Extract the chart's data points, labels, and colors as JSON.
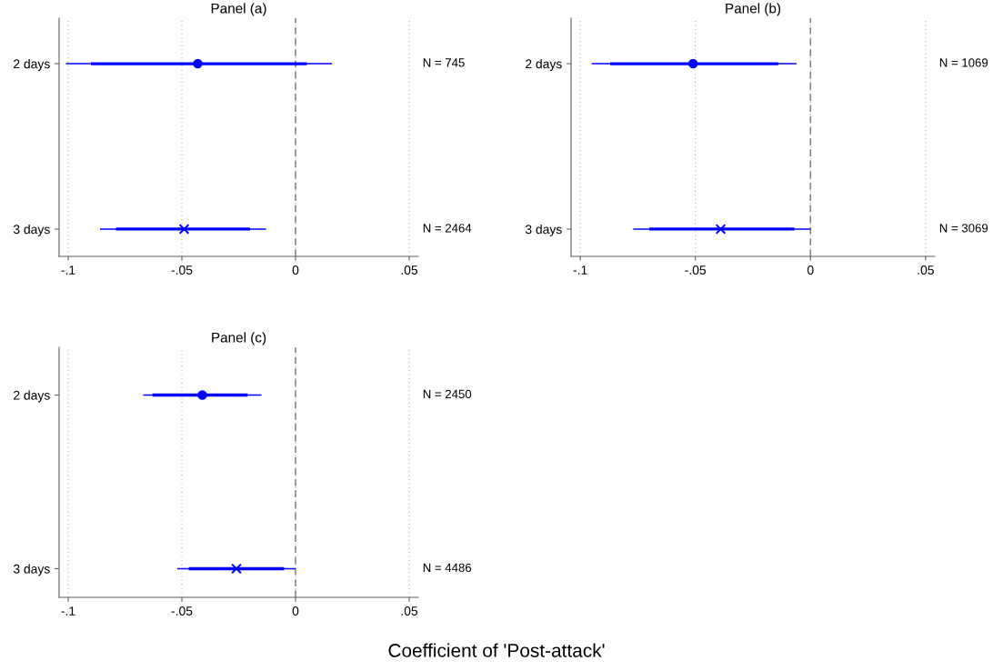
{
  "chart_data": [
    {
      "type": "scatter",
      "title": "Panel (a)",
      "orientation": "horizontal",
      "categories": [
        "2 days",
        "3 days"
      ],
      "xlim": [
        -0.104,
        0.054
      ],
      "xticks": [
        {
          "value": -0.1,
          "label": "-.1"
        },
        {
          "value": -0.05,
          "label": "-.05"
        },
        0,
        {
          "value": 0.05,
          "label": ".05"
        }
      ],
      "grid": "x",
      "ref_lines": [
        {
          "axis": "x",
          "value": 0,
          "color": "#808080",
          "line_style": "dashed"
        }
      ],
      "annotations": [
        "N = 745",
        "N = 2464"
      ],
      "series": [
        {
          "type": "bar",
          "color": "#0000ff",
          "base": [
            -0.09,
            -0.079
          ],
          "values": [
            0.095,
            0.059
          ]
        },
        {
          "marker": "circle",
          "color": "#0000ff",
          "values": [
            -0.043,
            null
          ],
          "errors": [
            [
              -0.101,
              0.016
            ],
            null
          ]
        },
        {
          "marker": "cross",
          "color": "#0000ff",
          "values": [
            null,
            -0.049
          ],
          "errors": [
            null,
            [
              -0.086,
              -0.013
            ]
          ]
        }
      ]
    },
    {
      "type": "scatter",
      "title": "Panel (b)",
      "orientation": "horizontal",
      "categories": [
        "2 days",
        "3 days"
      ],
      "xlim": [
        -0.104,
        0.054
      ],
      "xticks": [
        {
          "value": -0.1,
          "label": "-.1"
        },
        {
          "value": -0.05,
          "label": "-.05"
        },
        0,
        {
          "value": 0.05,
          "label": ".05"
        }
      ],
      "grid": "x",
      "ref_lines": [
        {
          "axis": "x",
          "value": 0,
          "color": "#808080",
          "line_style": "dashed"
        }
      ],
      "annotations": [
        "N = 1069",
        "N = 3069"
      ],
      "series": [
        {
          "type": "bar",
          "color": "#0000ff",
          "base": [
            -0.087,
            -0.07
          ],
          "values": [
            0.073,
            0.063
          ]
        },
        {
          "marker": "circle",
          "color": "#0000ff",
          "values": [
            -0.051,
            null
          ],
          "errors": [
            [
              -0.095,
              -0.006
            ],
            null
          ]
        },
        {
          "marker": "cross",
          "color": "#0000ff",
          "values": [
            null,
            -0.039
          ],
          "errors": [
            null,
            [
              -0.077,
              0.0
            ]
          ]
        }
      ]
    },
    {
      "type": "scatter",
      "title": "Panel (c)",
      "xlabel": "Coefficient of 'Post-attack'",
      "orientation": "horizontal",
      "categories": [
        "2 days",
        "3 days"
      ],
      "xlim": [
        -0.104,
        0.054
      ],
      "xticks": [
        {
          "value": -0.1,
          "label": "-.1"
        },
        {
          "value": -0.05,
          "label": "-.05"
        },
        0,
        {
          "value": 0.05,
          "label": ".05"
        }
      ],
      "grid": "x",
      "ref_lines": [
        {
          "axis": "x",
          "value": 0,
          "color": "#808080",
          "line_style": "dashed"
        }
      ],
      "annotations": [
        "N = 2450",
        "N = 4486"
      ],
      "series": [
        {
          "type": "bar",
          "color": "#0000ff",
          "base": [
            -0.063,
            -0.047
          ],
          "values": [
            0.042,
            0.042
          ]
        },
        {
          "marker": "circle",
          "color": "#0000ff",
          "values": [
            -0.041,
            null
          ],
          "errors": [
            [
              -0.067,
              -0.015
            ],
            null
          ]
        },
        {
          "marker": "cross",
          "color": "#0000ff",
          "values": [
            null,
            -0.026
          ],
          "errors": [
            null,
            [
              -0.052,
              0.0
            ]
          ]
        }
      ]
    }
  ]
}
